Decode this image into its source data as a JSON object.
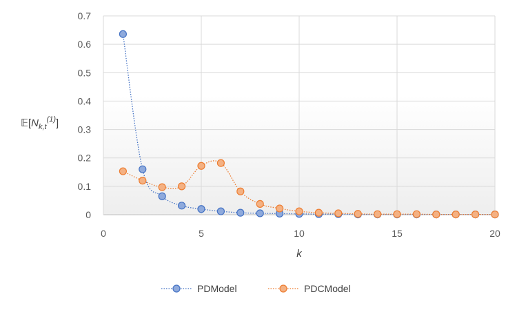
{
  "chart_data": {
    "type": "line",
    "title": "",
    "xlabel": "k",
    "ylabel": {
      "prefix": "𝔼[",
      "base": "N",
      "subscript": "k,t",
      "superscript": "(1)",
      "suffix": "]"
    },
    "xlim": [
      0,
      20
    ],
    "ylim": [
      0,
      0.7
    ],
    "xticks": [
      "0",
      "5",
      "10",
      "15",
      "20"
    ],
    "yticks": [
      "0",
      "0.1",
      "0.2",
      "0.3",
      "0.4",
      "0.5",
      "0.6",
      "0.7"
    ],
    "grid": true,
    "legend_position": "bottom",
    "x": [
      1,
      2,
      3,
      4,
      5,
      6,
      7,
      8,
      9,
      10,
      11,
      12,
      13,
      14,
      15,
      16,
      17,
      18,
      19,
      20
    ],
    "series": [
      {
        "name": "PDModel",
        "color": "#4472C4",
        "fill": "#8FAADC",
        "values": [
          0.636,
          0.16,
          0.065,
          0.032,
          0.02,
          0.012,
          0.007,
          0.005,
          0.004,
          0.003,
          0.002,
          0.002,
          0.001,
          0.001,
          0.001,
          0.001,
          0.001,
          0.001,
          0.001,
          0.001
        ]
      },
      {
        "name": "PDCModel",
        "color": "#ED7D31",
        "fill": "#F4B183",
        "values": [
          0.153,
          0.12,
          0.097,
          0.1,
          0.172,
          0.182,
          0.082,
          0.038,
          0.022,
          0.012,
          0.007,
          0.005,
          0.003,
          0.002,
          0.002,
          0.002,
          0.001,
          0.001,
          0.001,
          0.001
        ]
      }
    ]
  }
}
